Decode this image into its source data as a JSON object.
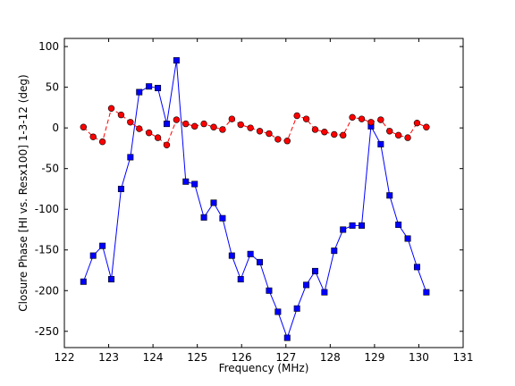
{
  "chart_data": {
    "type": "line",
    "xlabel": "Frequency (MHz)",
    "ylabel": "Closure Phase [HI vs. Resx100] 1-3-12 (deg)",
    "xlim": [
      122,
      131
    ],
    "ylim": [
      -270,
      110
    ],
    "xticks": [
      122,
      123,
      124,
      125,
      126,
      127,
      128,
      129,
      130,
      131
    ],
    "yticks": [
      100,
      50,
      0,
      -50,
      -100,
      -150,
      -200,
      -250
    ],
    "grid": false,
    "series": [
      {
        "color": "#0000ff",
        "line_style": "solid",
        "marker": "square",
        "x": [
          122.43,
          122.65,
          122.86,
          123.06,
          123.28,
          123.49,
          123.69,
          123.91,
          124.11,
          124.31,
          124.53,
          124.74,
          124.94,
          125.15,
          125.37,
          125.57,
          125.78,
          125.98,
          126.2,
          126.41,
          126.62,
          126.82,
          127.03,
          127.25,
          127.46,
          127.66,
          127.87,
          128.09,
          128.29,
          128.5,
          128.71,
          128.92,
          129.14,
          129.34,
          129.54,
          129.75,
          129.96,
          130.17
        ],
        "y": [
          -189,
          -157,
          -145,
          -186,
          -75,
          -36,
          44,
          51,
          49,
          5,
          83,
          -66,
          -69,
          -110,
          -92,
          -111,
          -157,
          -186,
          -155,
          -165,
          -200,
          -226,
          -258,
          -222,
          -193,
          -176,
          -202,
          -151,
          -125,
          -120,
          -120,
          2,
          -20,
          -83,
          -119,
          -136,
          -171,
          -202
        ]
      },
      {
        "color": "#ff0000",
        "line_style": "dashed",
        "marker": "circle",
        "x": [
          122.43,
          122.65,
          122.86,
          123.06,
          123.28,
          123.49,
          123.69,
          123.91,
          124.11,
          124.31,
          124.53,
          124.74,
          124.94,
          125.15,
          125.37,
          125.57,
          125.78,
          125.98,
          126.2,
          126.41,
          126.62,
          126.82,
          127.03,
          127.25,
          127.46,
          127.66,
          127.87,
          128.09,
          128.29,
          128.5,
          128.71,
          128.92,
          129.14,
          129.34,
          129.54,
          129.75,
          129.96,
          130.17
        ],
        "y": [
          1,
          -11,
          -17,
          24,
          16,
          7,
          -1,
          -6,
          -12,
          -21,
          10,
          5,
          2,
          5,
          1,
          -2,
          11,
          4,
          0,
          -4,
          -7,
          -14,
          -16,
          15,
          11,
          -2,
          -5,
          -8,
          -9,
          13,
          11,
          7,
          10,
          -4,
          -9,
          -12,
          6,
          1
        ]
      }
    ]
  }
}
